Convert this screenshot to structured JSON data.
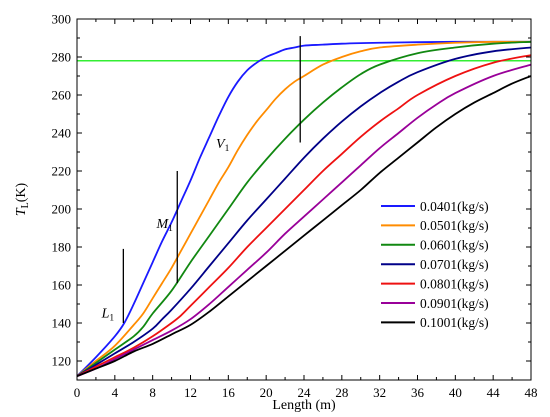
{
  "chart_data": {
    "type": "line",
    "xlabel": "Length (m)",
    "ylabel": {
      "main": "T",
      "sub": "L",
      "unit": "(K)"
    },
    "xlim": [
      0,
      48
    ],
    "ylim": [
      110,
      300
    ],
    "xticks": [
      0,
      4,
      8,
      12,
      16,
      20,
      24,
      28,
      32,
      36,
      40,
      44,
      48
    ],
    "yticks": [
      120,
      140,
      160,
      180,
      200,
      220,
      240,
      260,
      280,
      300
    ],
    "grid": false,
    "legend_position": "bottom-right",
    "reference_line": {
      "y": 278,
      "color": "#33ee33"
    },
    "series": [
      {
        "name": "0.0401(kg/s)",
        "color": "#1a1aff",
        "x": [
          0,
          2,
          4,
          5,
          6,
          7,
          8,
          9,
          10,
          11,
          12,
          13,
          14,
          15,
          16,
          17,
          18,
          19,
          20,
          21,
          22,
          23,
          24,
          26,
          28,
          30,
          32,
          36,
          40,
          44,
          48
        ],
        "y": [
          112,
          122,
          133,
          140,
          150,
          161,
          172,
          183,
          193,
          204,
          215,
          227,
          238,
          249,
          259,
          267,
          273,
          277,
          280,
          282,
          284,
          285,
          286,
          286.5,
          287,
          287.3,
          287.5,
          287.8,
          288,
          288,
          288
        ]
      },
      {
        "name": "0.0501(kg/s)",
        "color": "#ff8c00",
        "x": [
          0,
          2,
          4,
          6,
          7,
          8,
          9,
          10,
          11,
          12,
          13,
          14,
          15,
          16,
          17,
          18,
          19,
          20,
          21,
          22,
          23,
          24,
          26,
          28,
          30,
          32,
          36,
          40,
          44,
          48
        ],
        "y": [
          112,
          120,
          128,
          139,
          145,
          153,
          161,
          169,
          178,
          187,
          196,
          205,
          214,
          222,
          231,
          239,
          246,
          252,
          258,
          263,
          267,
          270,
          276,
          280,
          283,
          285,
          286.5,
          287.5,
          288,
          288
        ]
      },
      {
        "name": "0.0601(kg/s)",
        "color": "#118811",
        "x": [
          0,
          2,
          4,
          6,
          7,
          8,
          10,
          12,
          14,
          16,
          18,
          20,
          22,
          24,
          26,
          28,
          30,
          32,
          36,
          40,
          44,
          48
        ],
        "y": [
          112,
          119,
          126,
          133,
          138,
          145,
          157,
          172,
          186,
          200,
          214,
          226,
          237,
          247,
          256,
          264,
          271,
          276,
          282,
          285,
          287,
          288
        ]
      },
      {
        "name": "0.0701(kg/s)",
        "color": "#000088",
        "x": [
          0,
          2,
          4,
          6,
          8,
          9,
          10,
          12,
          14,
          16,
          18,
          20,
          22,
          24,
          26,
          28,
          30,
          32,
          34,
          36,
          40,
          44,
          48
        ],
        "y": [
          112,
          118,
          124,
          130,
          137,
          142,
          147,
          158,
          170,
          182,
          194,
          205,
          216,
          227,
          237,
          246,
          254,
          261,
          267,
          272,
          279,
          283,
          285
        ]
      },
      {
        "name": "0.0801(kg/s)",
        "color": "#ee1111",
        "x": [
          0,
          2,
          4,
          6,
          8,
          10,
          11,
          12,
          14,
          16,
          18,
          20,
          22,
          24,
          26,
          28,
          30,
          32,
          34,
          36,
          40,
          44,
          48
        ],
        "y": [
          112,
          117,
          122,
          127,
          133,
          140,
          144,
          149,
          159,
          169,
          180,
          190,
          200,
          210,
          220,
          229,
          238,
          246,
          253,
          260,
          270,
          277,
          281
        ]
      },
      {
        "name": "0.0901(kg/s)",
        "color": "#990099",
        "x": [
          0,
          2,
          4,
          6,
          8,
          10,
          12,
          14,
          16,
          18,
          20,
          22,
          24,
          26,
          28,
          30,
          32,
          34,
          36,
          38,
          40,
          44,
          48
        ],
        "y": [
          112,
          116,
          121,
          126,
          131,
          136,
          142,
          150,
          159,
          168,
          177,
          187,
          196,
          205,
          214,
          223,
          232,
          240,
          248,
          255,
          261,
          270,
          276
        ]
      },
      {
        "name": "0.1001(kg/s)",
        "color": "#000000",
        "x": [
          0,
          2,
          4,
          6,
          8,
          10,
          12,
          14,
          16,
          18,
          20,
          22,
          24,
          26,
          28,
          30,
          32,
          34,
          36,
          38,
          40,
          42,
          44,
          46,
          48
        ],
        "y": [
          112,
          116,
          120,
          125,
          129,
          134,
          139,
          146,
          154,
          162,
          170,
          178,
          186,
          194,
          202,
          210,
          219,
          227,
          235,
          243,
          250,
          256,
          261,
          266,
          270
        ]
      }
    ],
    "annotations": [
      {
        "main": "L",
        "sub": "1",
        "x": 2.6,
        "y": 143,
        "line": {
          "x": 4.9,
          "y1": 140,
          "y2": 179
        }
      },
      {
        "main": "M",
        "sub": "1",
        "x": 8.4,
        "y": 190,
        "line": {
          "x": 10.6,
          "y1": 161,
          "y2": 220
        }
      },
      {
        "main": "V",
        "sub": "1",
        "x": 14.7,
        "y": 232,
        "line": {
          "x": 23.6,
          "y1": 235,
          "y2": 291
        }
      }
    ]
  }
}
